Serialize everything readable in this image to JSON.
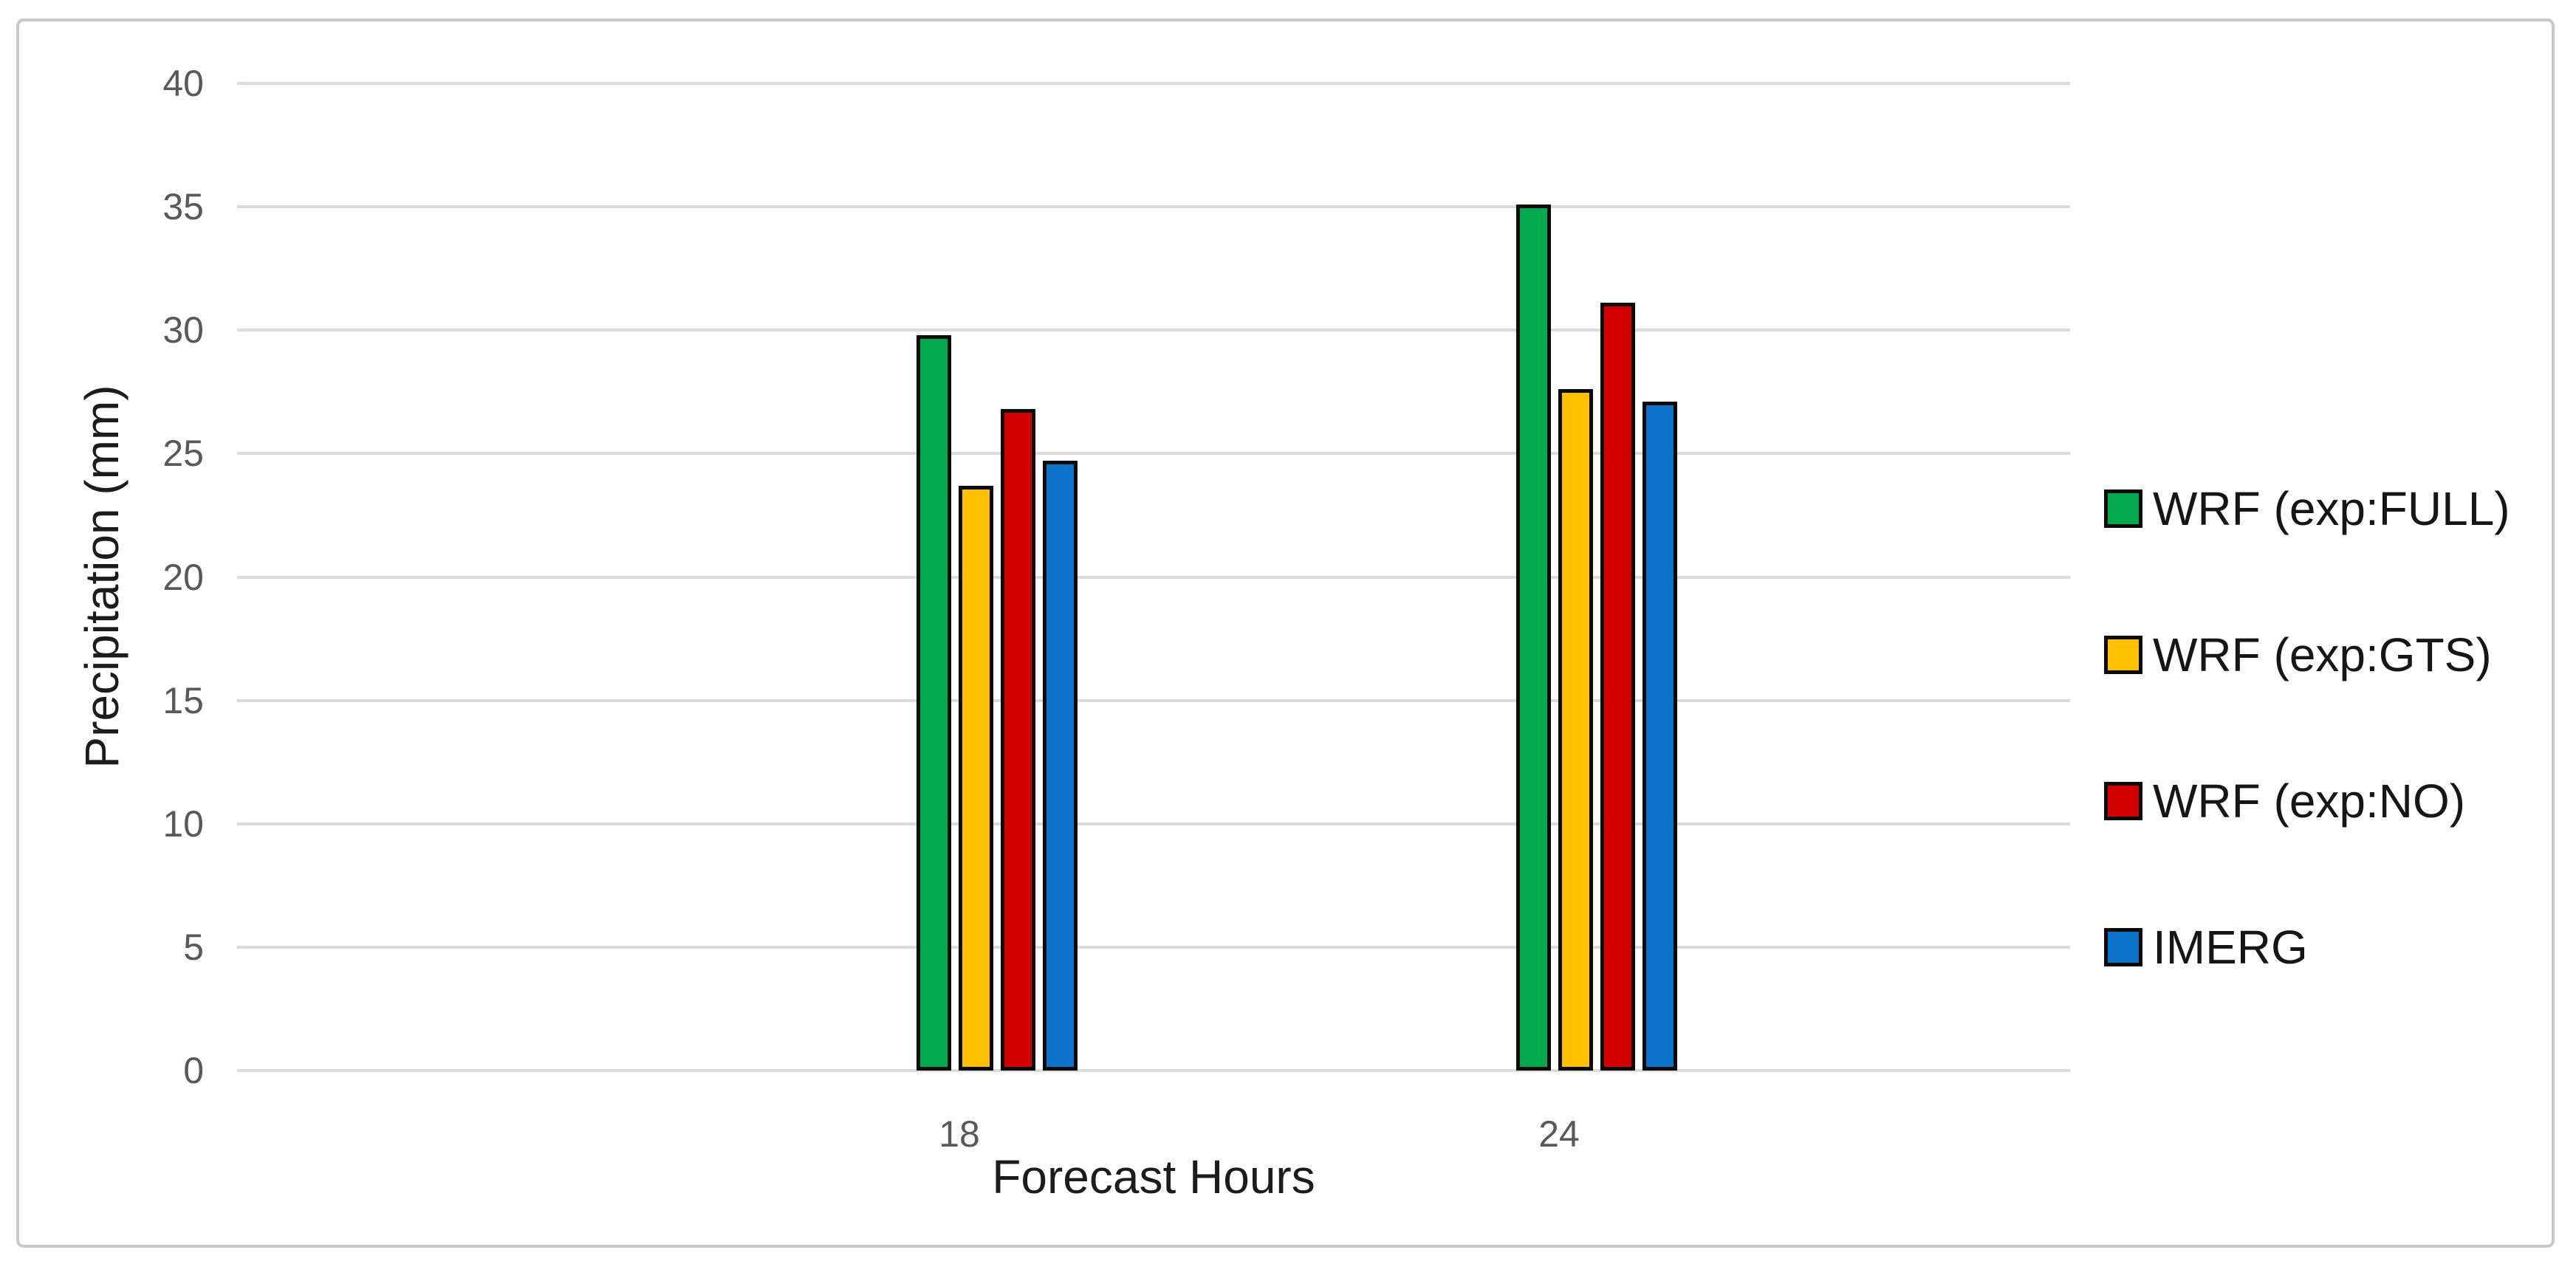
{
  "figure": {
    "background": "#ffffff",
    "border_color": "#c9c9c9"
  },
  "chart_data": {
    "type": "bar",
    "title": "",
    "xlabel": "Forecast Hours",
    "ylabel": "Precipitation (mm)",
    "categories": [
      "18",
      "24"
    ],
    "series": [
      {
        "name": "WRF (exp:FULL)",
        "color": "#00a84f",
        "values": [
          29.8,
          35.1
        ]
      },
      {
        "name": "WRF (exp:GTS)",
        "color": "#ffc000",
        "values": [
          23.7,
          27.6
        ]
      },
      {
        "name": "WRF (exp:NO)",
        "color": "#d20000",
        "values": [
          26.8,
          31.1
        ]
      },
      {
        "name": "IMERG",
        "color": "#0d72ca",
        "values": [
          24.7,
          27.1
        ]
      }
    ],
    "ylim": [
      0,
      40
    ],
    "yticks": [
      0,
      5,
      10,
      15,
      20,
      25,
      30,
      35,
      40
    ],
    "grid": true,
    "grid_color": "#dbdbdb",
    "bar_border_color": "#0a0a0a",
    "tick_color": "#595959",
    "text_color": "#1c1c1c",
    "legend_position": "right"
  }
}
